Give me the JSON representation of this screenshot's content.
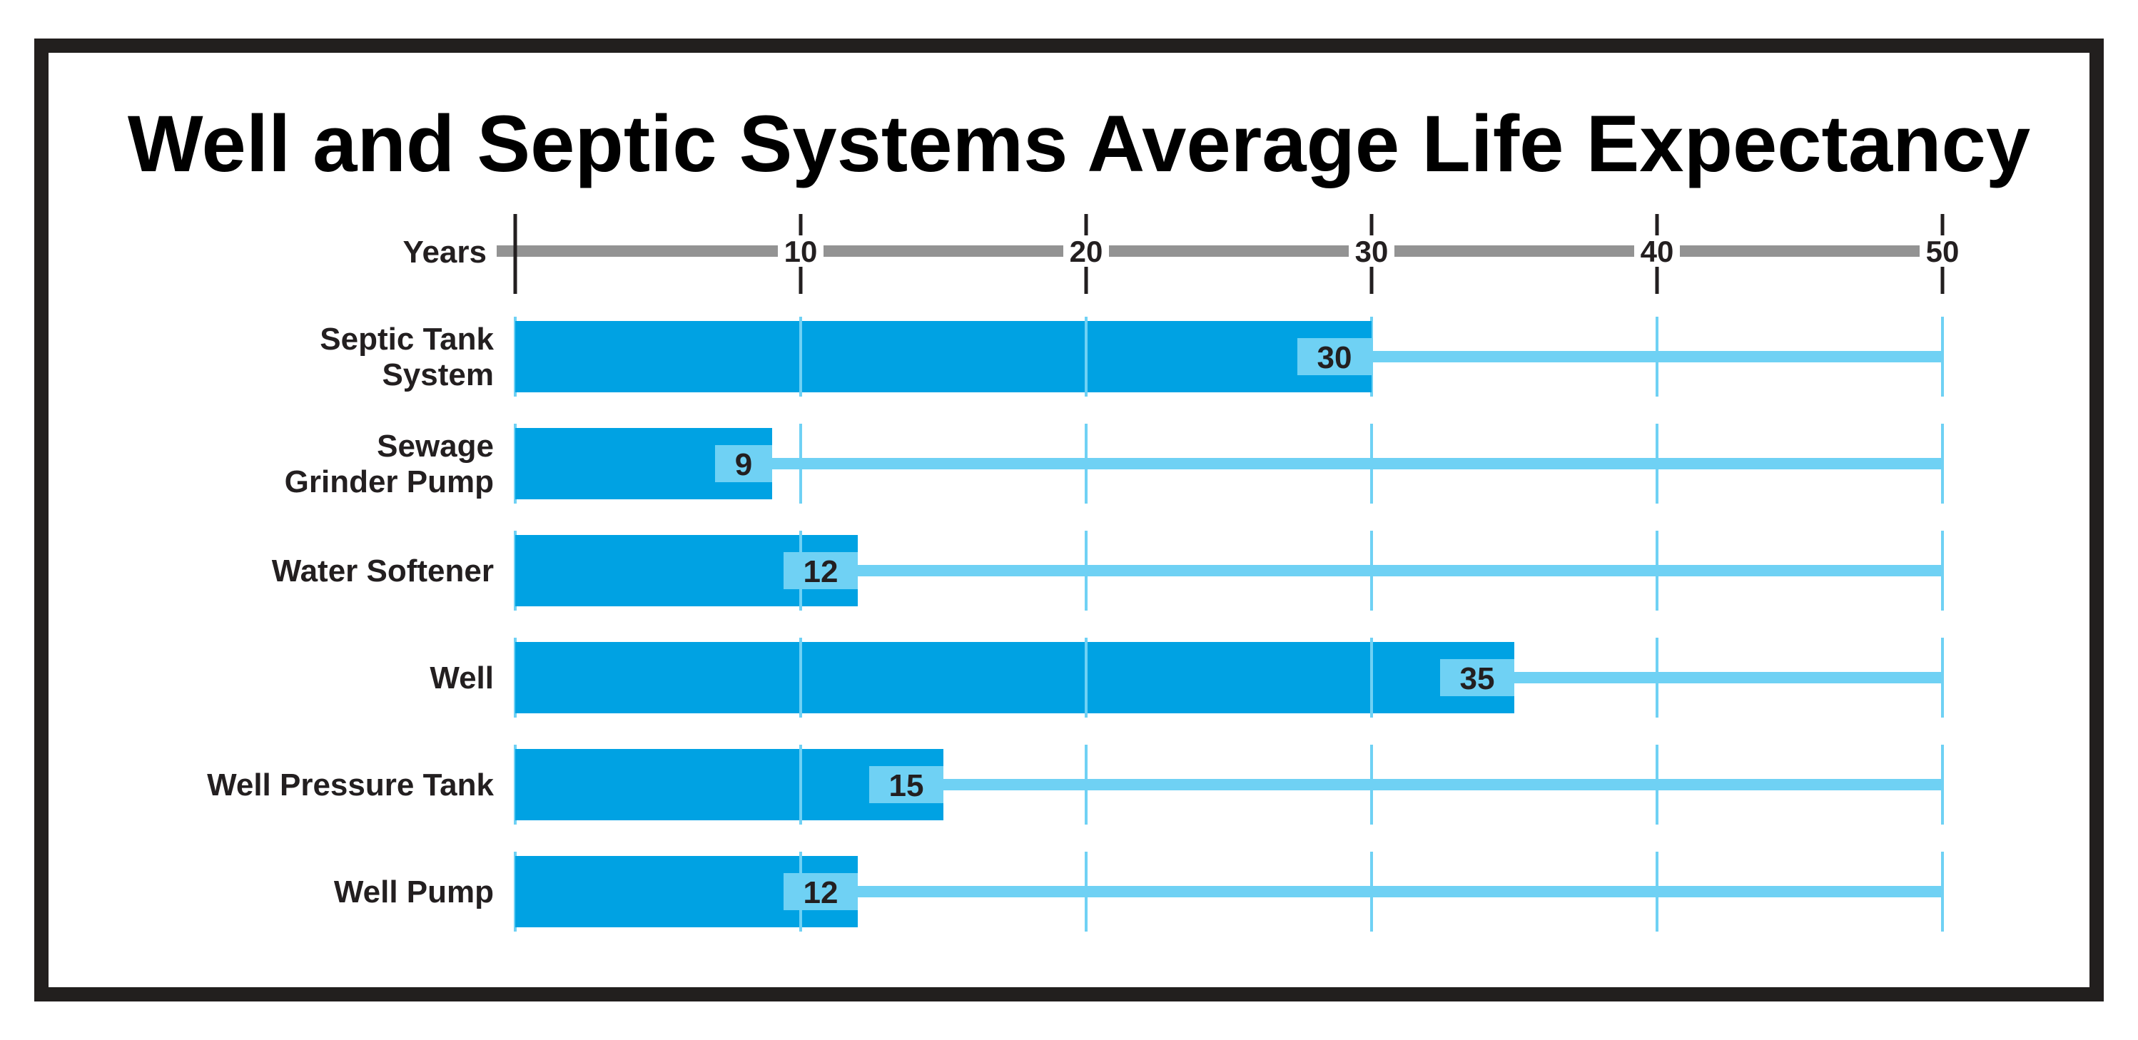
{
  "chart_data": {
    "type": "bar",
    "orientation": "horizontal",
    "title": "Well and Septic Systems Average Life Expectancy",
    "xlabel": "Years",
    "xlim": [
      0,
      50
    ],
    "xticks": [
      10,
      20,
      30,
      40,
      50
    ],
    "grid": true,
    "categories": [
      [
        "Septic Tank",
        "System"
      ],
      [
        "Sewage",
        "Grinder Pump"
      ],
      [
        "Water Softener"
      ],
      [
        "Well"
      ],
      [
        "Well Pressure Tank"
      ],
      [
        "Well Pump"
      ]
    ],
    "values": [
      30,
      9,
      12,
      35,
      15,
      12
    ],
    "value_labels": [
      "30",
      "9",
      "12",
      "35",
      "15",
      "12"
    ]
  },
  "colors": {
    "frame": "#221f1e",
    "text": "#231f20",
    "bar": "#00a2e3",
    "track": "#6fd1f4",
    "label_box": "#6fd1f4",
    "axis_bar": "#939393",
    "gridline": "#6fd1f4"
  }
}
